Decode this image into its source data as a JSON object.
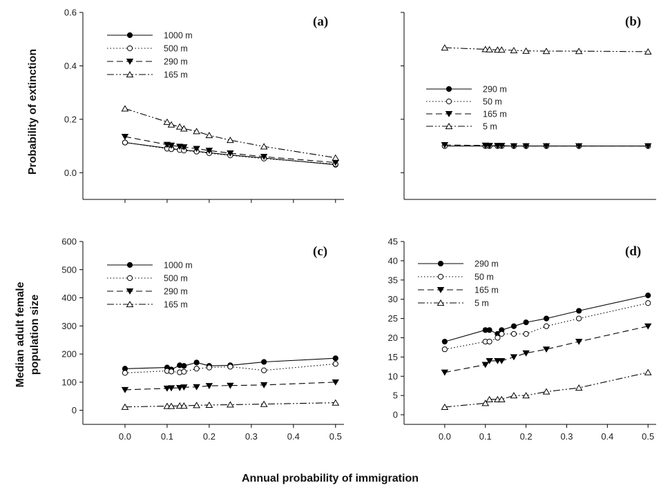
{
  "figure": {
    "xlabel": "Annual probability of immigration",
    "ylabel_top": "Probability of extinction",
    "ylabel_bottom_line1": "Median adult female",
    "ylabel_bottom_line2": "population size"
  },
  "chart_data": [
    {
      "panel": "(a)",
      "type": "line",
      "xlabel": "",
      "ylabel": "Probability of extinction",
      "xlim": [
        -0.1,
        0.52
      ],
      "ylim": [
        -0.1,
        0.6
      ],
      "xticks": [
        0.0,
        0.1,
        0.2,
        0.3,
        0.4,
        0.5
      ],
      "yticks": [
        0.0,
        0.2,
        0.4,
        0.6
      ],
      "ytick_labels": [
        "0.0",
        "0.2",
        "0.4",
        "0.6"
      ],
      "legend_position": "top-left",
      "x": [
        0.0,
        0.1,
        0.11,
        0.13,
        0.14,
        0.17,
        0.2,
        0.25,
        0.33,
        0.5
      ],
      "series": [
        {
          "name": "1000 m",
          "marker": "filled-circle",
          "dash": "",
          "values": [
            0.113,
            0.092,
            0.09,
            0.086,
            0.085,
            0.08,
            0.075,
            0.066,
            0.055,
            0.03
          ]
        },
        {
          "name": "500 m",
          "marker": "open-circle",
          "dash": "1.5,3",
          "values": [
            0.113,
            0.09,
            0.088,
            0.085,
            0.083,
            0.079,
            0.073,
            0.065,
            0.053,
            0.032
          ]
        },
        {
          "name": "290 m",
          "marker": "filled-triangle-down",
          "dash": "9,5",
          "values": [
            0.135,
            0.105,
            0.102,
            0.098,
            0.096,
            0.09,
            0.083,
            0.073,
            0.06,
            0.038
          ]
        },
        {
          "name": "165 m",
          "marker": "open-triangle-up",
          "dash": "10,3,2,3,2,3",
          "values": [
            0.24,
            0.19,
            0.18,
            0.172,
            0.165,
            0.155,
            0.14,
            0.122,
            0.098,
            0.056
          ]
        }
      ]
    },
    {
      "panel": "(b)",
      "type": "line",
      "xlabel": "",
      "ylabel": "",
      "xlim": [
        -0.1,
        0.52
      ],
      "ylim": [
        -0.1,
        0.6
      ],
      "xticks": [],
      "yticks": [
        0.0,
        0.2,
        0.4,
        0.6
      ],
      "ytick_labels": [],
      "legend_position": "center-left",
      "x": [
        0.0,
        0.1,
        0.11,
        0.13,
        0.14,
        0.17,
        0.2,
        0.25,
        0.33,
        0.5
      ],
      "series": [
        {
          "name": "290 m",
          "marker": "filled-circle",
          "dash": "",
          "values": [
            0.1,
            0.1,
            0.1,
            0.1,
            0.1,
            0.1,
            0.1,
            0.1,
            0.1,
            0.1
          ]
        },
        {
          "name": "50 m",
          "marker": "open-circle",
          "dash": "1.5,3",
          "values": [
            0.1,
            0.1,
            0.1,
            0.1,
            0.1,
            0.1,
            0.1,
            0.1,
            0.1,
            0.1
          ]
        },
        {
          "name": "165 m",
          "marker": "filled-triangle-down",
          "dash": "9,5",
          "values": [
            0.104,
            0.102,
            0.101,
            0.101,
            0.101,
            0.1,
            0.1,
            0.1,
            0.1,
            0.1
          ]
        },
        {
          "name": "5 m",
          "marker": "open-triangle-up",
          "dash": "10,3,2,3,2,3",
          "values": [
            0.468,
            0.462,
            0.461,
            0.46,
            0.46,
            0.458,
            0.456,
            0.455,
            0.455,
            0.453
          ]
        }
      ]
    },
    {
      "panel": "(c)",
      "type": "line",
      "xlabel": "",
      "ylabel": "Median adult female population size",
      "xlim": [
        -0.1,
        0.52
      ],
      "ylim": [
        -50,
        600
      ],
      "xticks": [
        0.0,
        0.1,
        0.2,
        0.3,
        0.4,
        0.5
      ],
      "xtick_labels": [
        "0.0",
        "0.1",
        "0.2",
        "0.3",
        "0.4",
        "0.5"
      ],
      "yticks": [
        0,
        100,
        200,
        300,
        400,
        500,
        600
      ],
      "ytick_labels": [
        "0",
        "100",
        "200",
        "300",
        "400",
        "500",
        "600"
      ],
      "legend_position": "top-left",
      "x": [
        0.0,
        0.1,
        0.11,
        0.13,
        0.14,
        0.17,
        0.2,
        0.25,
        0.33,
        0.5
      ],
      "series": [
        {
          "name": "1000 m",
          "marker": "filled-circle",
          "dash": "",
          "values": [
            148,
            152,
            145,
            160,
            158,
            170,
            158,
            160,
            172,
            185
          ]
        },
        {
          "name": "500 m",
          "marker": "open-circle",
          "dash": "1.5,3",
          "values": [
            133,
            140,
            138,
            135,
            137,
            148,
            152,
            155,
            142,
            165
          ]
        },
        {
          "name": "290 m",
          "marker": "filled-triangle-down",
          "dash": "9,5",
          "values": [
            73,
            78,
            79,
            80,
            82,
            83,
            87,
            88,
            90,
            100
          ]
        },
        {
          "name": "165 m",
          "marker": "open-triangle-up",
          "dash": "10,3,2,3,2,3",
          "values": [
            12,
            15,
            15,
            16,
            16,
            18,
            19,
            20,
            22,
            27
          ]
        }
      ]
    },
    {
      "panel": "(d)",
      "type": "line",
      "xlabel": "",
      "ylabel": "",
      "xlim": [
        -0.1,
        0.52
      ],
      "ylim": [
        -2.5,
        45
      ],
      "xticks": [
        0.0,
        0.1,
        0.2,
        0.3,
        0.4,
        0.5
      ],
      "xtick_labels": [
        "0.0",
        "0.1",
        "0.2",
        "0.3",
        "0.4",
        "0.5"
      ],
      "yticks": [
        0,
        5,
        10,
        15,
        20,
        25,
        30,
        35,
        40,
        45
      ],
      "ytick_labels": [
        "0",
        "5",
        "10",
        "15",
        "20",
        "25",
        "30",
        "35",
        "40",
        "45"
      ],
      "legend_position": "top-left",
      "x": [
        0.0,
        0.1,
        0.11,
        0.13,
        0.14,
        0.17,
        0.2,
        0.25,
        0.33,
        0.5
      ],
      "series": [
        {
          "name": "290 m",
          "marker": "filled-circle",
          "dash": "",
          "values": [
            19,
            22,
            22,
            21,
            22,
            23,
            24,
            25,
            27,
            31
          ]
        },
        {
          "name": "50 m",
          "marker": "open-circle",
          "dash": "1.5,3",
          "values": [
            17,
            19,
            19,
            20,
            21,
            21,
            21,
            23,
            25,
            29
          ]
        },
        {
          "name": "165 m",
          "marker": "filled-triangle-down",
          "dash": "9,5",
          "values": [
            11,
            13,
            14,
            14,
            14,
            15,
            16,
            17,
            19,
            23
          ]
        },
        {
          "name": "5 m",
          "marker": "open-triangle-up",
          "dash": "10,3,2,3,2,3",
          "values": [
            2,
            3,
            4,
            4,
            4,
            5,
            5,
            6,
            7,
            11
          ]
        }
      ]
    }
  ]
}
